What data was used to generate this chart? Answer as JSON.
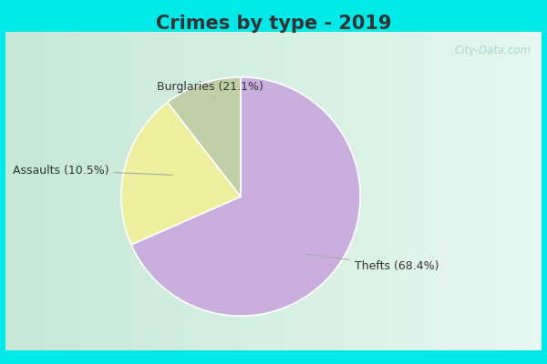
{
  "title": "Crimes by type - 2019",
  "slices": [
    {
      "label": "Thefts",
      "pct": 68.4,
      "color": "#c9aede"
    },
    {
      "label": "Burglaries",
      "pct": 21.1,
      "color": "#eef0a0"
    },
    {
      "label": "Assaults",
      "pct": 10.5,
      "color": "#c0cfa8"
    }
  ],
  "bg_color_cyan": "#00e8e8",
  "bg_gradient_left": "#c8ead8",
  "bg_gradient_right": "#e8f8f0",
  "title_fontsize": 15,
  "label_fontsize": 9,
  "watermark": "City-Data.com",
  "startangle": 90,
  "title_color": "#333333"
}
